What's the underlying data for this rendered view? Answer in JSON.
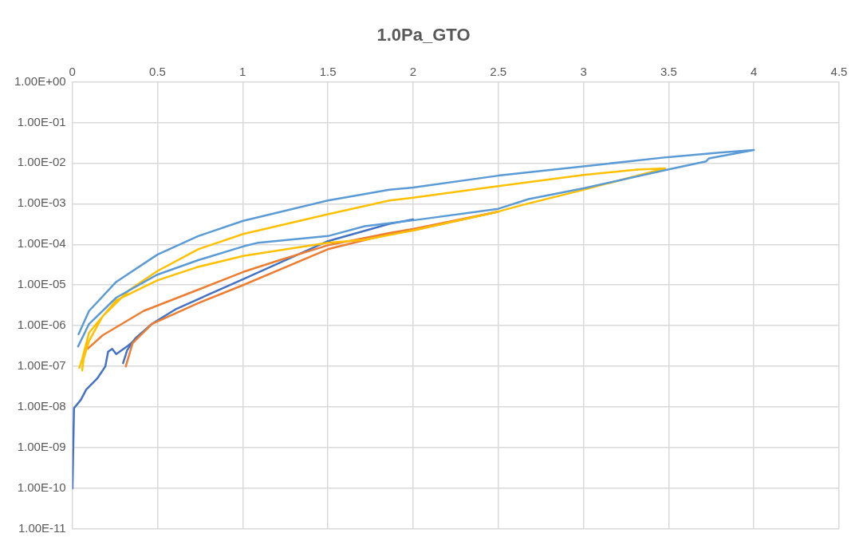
{
  "chart_data": {
    "type": "line",
    "title": "1.0Pa_GTO",
    "log": "y",
    "grid": true,
    "xlim": [
      0,
      4.5
    ],
    "xticks": [
      0,
      0.5,
      1,
      1.5,
      2,
      2.5,
      3,
      3.5,
      4,
      4.5
    ],
    "ylim": [
      1e-11,
      1
    ],
    "yticks": [
      {
        "value": 1,
        "label": "1.00E+00"
      },
      {
        "value": 0.1,
        "label": "1.00E-01"
      },
      {
        "value": 0.01,
        "label": "1.00E-02"
      },
      {
        "value": 0.001,
        "label": "1.00E-03"
      },
      {
        "value": 0.0001,
        "label": "1.00E-04"
      },
      {
        "value": 1e-05,
        "label": "1.00E-05"
      },
      {
        "value": 1e-06,
        "label": "1.00E-06"
      },
      {
        "value": 1e-07,
        "label": "1.00E-07"
      },
      {
        "value": 1e-08,
        "label": "1.00E-08"
      },
      {
        "value": 1e-09,
        "label": "1.00E-09"
      },
      {
        "value": 1e-10,
        "label": "1.00E-10"
      },
      {
        "value": 1e-11,
        "label": "1.00E-11"
      }
    ],
    "series": [
      {
        "color": "#5b9bd5",
        "x": [
          0.037,
          0.098,
          0.258,
          0.499,
          0.739,
          1.003,
          1.5,
          1.861,
          2.0,
          2.5,
          3.0,
          3.495,
          3.798,
          4.0,
          3.736,
          3.72,
          3.495,
          3.0,
          2.678,
          2.5,
          2.0,
          1.716,
          1.5,
          1.091,
          1.003,
          0.739,
          0.499,
          0.258,
          0.098,
          0.034
        ],
        "values": [
          6.2e-07,
          2.3e-06,
          1.2e-05,
          5.6e-05,
          0.00016,
          0.00038,
          0.0012,
          0.0022,
          0.0025,
          0.0049,
          0.0083,
          0.014,
          0.018,
          0.021,
          0.013,
          0.011,
          0.0069,
          0.0024,
          0.0013,
          0.00075,
          0.00039,
          0.00028,
          0.00016,
          0.00011,
          8.9e-05,
          4.1e-05,
          1.8e-05,
          4.9e-06,
          1.1e-06,
          3.1e-07
        ]
      },
      {
        "color": "#ffc000",
        "x": [
          0.058,
          0.066,
          0.098,
          0.178,
          0.337,
          0.499,
          0.739,
          1.003,
          1.5,
          1.861,
          2.0,
          2.5,
          3.0,
          3.317,
          3.479,
          3.0,
          2.646,
          2.5,
          2.0,
          1.716,
          1.5,
          1.003,
          0.739,
          0.499,
          0.258,
          0.098,
          0.058,
          0.042
        ],
        "values": [
          7.9e-08,
          1.5e-07,
          4.2e-07,
          1.7e-06,
          7.7e-06,
          2.2e-05,
          7.6e-05,
          0.00018,
          0.00055,
          0.0012,
          0.0014,
          0.0027,
          0.0051,
          0.0069,
          0.0074,
          0.0022,
          0.00094,
          0.00064,
          0.00022,
          0.00013,
          0.00011,
          5.2e-05,
          2.8e-05,
          1.3e-05,
          4.2e-06,
          6.7e-07,
          1.5e-07,
          9.2e-08
        ]
      },
      {
        "color": "#ed7d31",
        "x": [
          0.09,
          0.178,
          0.418,
          0.739,
          1.003,
          1.217,
          1.5,
          1.861,
          2.0,
          2.5
        ],
        "values": [
          2.7e-07,
          5.8e-07,
          2.3e-06,
          7.7e-06,
          2.1e-05,
          4.1e-05,
          9.5e-05,
          0.00019,
          0.00024,
          0.00064
        ]
      },
      {
        "color": "#ed7d31",
        "x": [
          0.314,
          0.354,
          0.466,
          0.739,
          1.003,
          1.5,
          1.861,
          2.0,
          2.5
        ],
        "values": [
          1e-07,
          3.7e-07,
          1.1e-06,
          3.6e-06,
          1e-05,
          7.6e-05,
          0.00018,
          0.00022,
          0.00064
        ]
      },
      {
        "color": "#4472c4",
        "x": [
          0.001,
          0.01,
          0.05,
          0.082,
          0.146,
          0.194,
          0.21,
          0.234,
          0.258,
          0.322,
          0.37,
          0.466,
          0.611,
          1.003,
          1.5,
          1.861,
          2.0
        ],
        "values": [
          1e-10,
          9.4e-09,
          1.5e-08,
          2.7e-08,
          5e-08,
          1e-07,
          2.3e-07,
          2.7e-07,
          2e-07,
          3.1e-07,
          4.6e-07,
          1.1e-06,
          2.6e-06,
          1.4e-05,
          0.00012,
          0.00032,
          0.00041
        ]
      },
      {
        "color": "#4472c4",
        "x": [
          0.298,
          0.322,
          0.37,
          0.466
        ],
        "values": [
          1.2e-07,
          2.5e-07,
          4.9e-07,
          1.1e-06
        ]
      }
    ]
  }
}
